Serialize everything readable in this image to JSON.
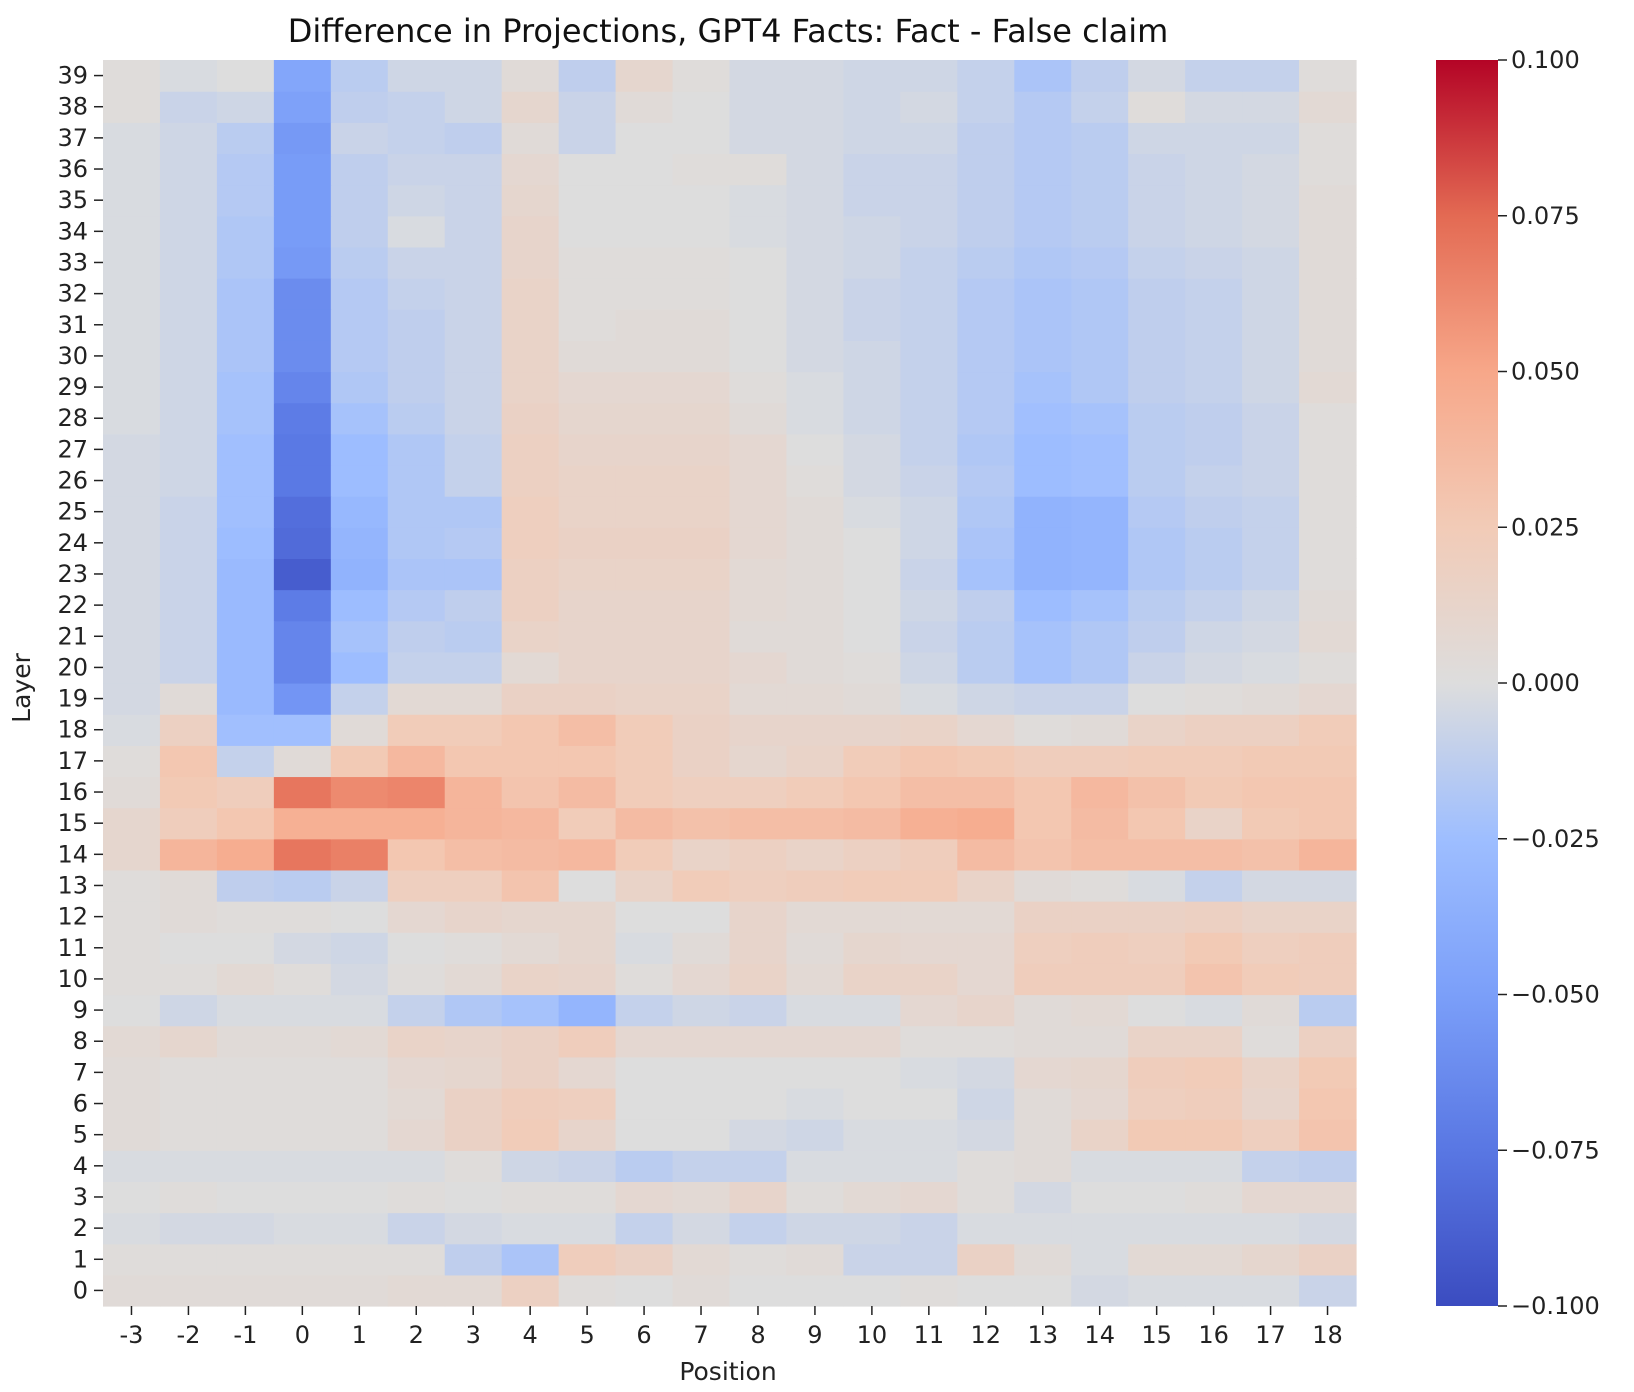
{
  "chart_data": {
    "type": "heatmap",
    "title": "Difference in Projections, GPT4 Facts: Fact - False claim",
    "xlabel": "Position",
    "ylabel": "Layer",
    "x": [
      -3,
      -2,
      -1,
      0,
      1,
      2,
      3,
      4,
      5,
      6,
      7,
      8,
      9,
      10,
      11,
      12,
      13,
      14,
      15,
      16,
      17,
      18
    ],
    "y": [
      0,
      1,
      2,
      3,
      4,
      5,
      6,
      7,
      8,
      9,
      10,
      11,
      12,
      13,
      14,
      15,
      16,
      17,
      18,
      19,
      20,
      21,
      22,
      23,
      24,
      25,
      26,
      27,
      28,
      29,
      30,
      31,
      32,
      33,
      34,
      35,
      36,
      37,
      38,
      39
    ],
    "colormap": "coolwarm",
    "vmin": -0.1,
    "vmax": 0.1,
    "colorbar_ticks": [
      0.1,
      0.075,
      0.05,
      0.025,
      0.0,
      -0.025,
      -0.05,
      -0.075,
      -0.1
    ],
    "colorbar_tick_labels": [
      "0.100",
      "0.075",
      "0.050",
      "0.025",
      "0.000",
      "−0.025",
      "−0.050",
      "−0.075",
      "−0.100"
    ],
    "values": [
      [
        0.004,
        0.004,
        0.004,
        0.004,
        0.004,
        0.006,
        0.006,
        0.018,
        0.002,
        0.0,
        0.004,
        0.0,
        0.0,
        0.0,
        0.002,
        0.0,
        0.0,
        -0.004,
        -0.002,
        -0.002,
        -0.002,
        -0.008
      ],
      [
        0.002,
        0.002,
        0.002,
        0.002,
        0.002,
        0.002,
        -0.012,
        -0.02,
        0.022,
        0.016,
        0.006,
        0.002,
        0.004,
        -0.008,
        -0.008,
        0.016,
        0.004,
        -0.002,
        0.006,
        0.006,
        0.01,
        0.016
      ],
      [
        -0.002,
        -0.004,
        -0.004,
        -0.002,
        -0.002,
        -0.008,
        -0.004,
        -0.002,
        -0.002,
        -0.01,
        -0.004,
        -0.01,
        -0.006,
        -0.006,
        -0.008,
        -0.002,
        -0.002,
        -0.002,
        -0.002,
        -0.002,
        -0.002,
        -0.004
      ],
      [
        0.0,
        0.002,
        0.0,
        0.0,
        0.0,
        0.002,
        0.0,
        0.002,
        0.002,
        0.008,
        0.006,
        0.012,
        0.002,
        0.006,
        0.008,
        0.002,
        -0.004,
        0.0,
        0.0,
        0.002,
        0.008,
        0.008
      ],
      [
        -0.002,
        -0.002,
        -0.002,
        -0.002,
        -0.002,
        -0.002,
        0.002,
        -0.006,
        -0.008,
        -0.014,
        -0.01,
        -0.01,
        -0.002,
        -0.002,
        -0.002,
        0.002,
        0.004,
        -0.002,
        -0.002,
        -0.002,
        -0.01,
        -0.012
      ],
      [
        0.004,
        0.002,
        0.002,
        0.002,
        0.002,
        0.008,
        0.016,
        0.024,
        0.012,
        0.0,
        0.0,
        -0.004,
        -0.006,
        -0.002,
        -0.002,
        -0.004,
        0.004,
        0.014,
        0.026,
        0.026,
        0.02,
        0.03
      ],
      [
        0.004,
        0.002,
        0.002,
        0.002,
        0.002,
        0.006,
        0.016,
        0.022,
        0.02,
        0.0,
        0.0,
        0.0,
        -0.002,
        0.0,
        0.0,
        -0.006,
        0.004,
        0.008,
        0.02,
        0.022,
        0.012,
        0.028
      ],
      [
        0.004,
        0.002,
        0.002,
        0.002,
        0.002,
        0.008,
        0.01,
        0.016,
        0.008,
        0.0,
        0.0,
        0.0,
        0.0,
        0.0,
        -0.002,
        -0.004,
        0.008,
        0.01,
        0.022,
        0.024,
        0.014,
        0.026
      ],
      [
        0.006,
        0.01,
        0.004,
        0.004,
        0.006,
        0.014,
        0.012,
        0.016,
        0.022,
        0.008,
        0.008,
        0.008,
        0.008,
        0.008,
        0.002,
        0.002,
        0.004,
        0.004,
        0.014,
        0.014,
        0.002,
        0.018
      ],
      [
        0.0,
        -0.006,
        -0.002,
        -0.002,
        -0.002,
        -0.01,
        -0.018,
        -0.022,
        -0.032,
        -0.01,
        -0.006,
        -0.008,
        -0.002,
        -0.002,
        0.008,
        0.012,
        0.004,
        0.006,
        0.0,
        -0.002,
        0.004,
        -0.014
      ],
      [
        0.002,
        0.002,
        0.006,
        0.002,
        -0.004,
        0.002,
        0.006,
        0.014,
        0.012,
        0.002,
        0.008,
        0.014,
        0.006,
        0.014,
        0.014,
        0.008,
        0.022,
        0.022,
        0.022,
        0.03,
        0.024,
        0.022
      ],
      [
        0.002,
        0.0,
        0.0,
        -0.004,
        -0.006,
        0.0,
        0.002,
        0.006,
        0.01,
        -0.002,
        0.004,
        0.012,
        0.004,
        0.01,
        0.008,
        0.008,
        0.02,
        0.022,
        0.02,
        0.026,
        0.02,
        0.022
      ],
      [
        0.002,
        0.004,
        0.002,
        0.002,
        0.0,
        0.008,
        0.012,
        0.01,
        0.01,
        0.0,
        0.0,
        0.012,
        0.006,
        0.006,
        0.006,
        0.006,
        0.016,
        0.016,
        0.016,
        0.018,
        0.014,
        0.014
      ],
      [
        0.002,
        0.004,
        -0.012,
        -0.014,
        -0.008,
        0.02,
        0.02,
        0.03,
        0.0,
        0.014,
        0.024,
        0.02,
        0.022,
        0.024,
        0.024,
        0.014,
        0.004,
        0.002,
        -0.002,
        -0.01,
        -0.004,
        -0.004
      ],
      [
        0.01,
        0.04,
        0.046,
        0.07,
        0.066,
        0.028,
        0.034,
        0.036,
        0.038,
        0.024,
        0.014,
        0.018,
        0.014,
        0.018,
        0.022,
        0.036,
        0.03,
        0.034,
        0.034,
        0.034,
        0.032,
        0.04
      ],
      [
        0.01,
        0.022,
        0.028,
        0.044,
        0.044,
        0.044,
        0.04,
        0.038,
        0.024,
        0.036,
        0.032,
        0.034,
        0.034,
        0.036,
        0.044,
        0.046,
        0.028,
        0.036,
        0.028,
        0.014,
        0.026,
        0.028
      ],
      [
        0.004,
        0.026,
        0.022,
        0.07,
        0.062,
        0.064,
        0.04,
        0.03,
        0.036,
        0.024,
        0.02,
        0.02,
        0.024,
        0.028,
        0.034,
        0.034,
        0.028,
        0.038,
        0.032,
        0.026,
        0.028,
        0.028
      ],
      [
        0.002,
        0.028,
        -0.01,
        0.004,
        0.026,
        0.038,
        0.028,
        0.028,
        0.028,
        0.024,
        0.016,
        0.01,
        0.014,
        0.024,
        0.028,
        0.026,
        0.022,
        0.022,
        0.024,
        0.024,
        0.026,
        0.026
      ],
      [
        -0.002,
        0.018,
        -0.024,
        -0.024,
        0.004,
        0.024,
        0.024,
        0.028,
        0.034,
        0.024,
        0.016,
        0.012,
        0.012,
        0.012,
        0.014,
        0.008,
        0.002,
        0.004,
        0.014,
        0.018,
        0.018,
        0.024
      ],
      [
        -0.004,
        0.004,
        -0.028,
        -0.056,
        -0.01,
        0.006,
        0.006,
        0.016,
        0.016,
        0.014,
        0.014,
        0.006,
        0.006,
        0.004,
        -0.002,
        -0.006,
        -0.008,
        -0.008,
        0.0,
        0.002,
        0.004,
        0.008
      ],
      [
        -0.004,
        -0.008,
        -0.028,
        -0.066,
        -0.026,
        -0.01,
        -0.01,
        0.006,
        0.012,
        0.012,
        0.012,
        0.008,
        0.004,
        0.002,
        -0.006,
        -0.014,
        -0.022,
        -0.018,
        -0.008,
        -0.004,
        -0.002,
        0.002
      ],
      [
        -0.004,
        -0.008,
        -0.028,
        -0.066,
        -0.022,
        -0.012,
        -0.014,
        0.014,
        0.012,
        0.012,
        0.012,
        0.004,
        0.004,
        0.0,
        -0.008,
        -0.014,
        -0.022,
        -0.018,
        -0.012,
        -0.006,
        -0.004,
        0.006
      ],
      [
        -0.004,
        -0.008,
        -0.028,
        -0.072,
        -0.026,
        -0.016,
        -0.012,
        0.018,
        0.012,
        0.012,
        0.012,
        0.006,
        0.004,
        0.0,
        -0.006,
        -0.012,
        -0.026,
        -0.022,
        -0.014,
        -0.01,
        -0.006,
        0.004
      ],
      [
        -0.004,
        -0.008,
        -0.028,
        -0.09,
        -0.034,
        -0.02,
        -0.02,
        0.018,
        0.014,
        0.014,
        0.014,
        0.006,
        0.004,
        0.0,
        -0.008,
        -0.022,
        -0.034,
        -0.032,
        -0.018,
        -0.014,
        -0.01,
        0.002
      ],
      [
        -0.004,
        -0.008,
        -0.026,
        -0.082,
        -0.032,
        -0.018,
        -0.016,
        0.02,
        0.016,
        0.016,
        0.016,
        0.008,
        0.004,
        0.0,
        -0.006,
        -0.02,
        -0.034,
        -0.032,
        -0.018,
        -0.014,
        -0.01,
        0.002
      ],
      [
        -0.004,
        -0.008,
        -0.024,
        -0.08,
        -0.03,
        -0.018,
        -0.018,
        0.02,
        0.014,
        0.014,
        0.014,
        0.008,
        0.004,
        -0.002,
        -0.006,
        -0.018,
        -0.034,
        -0.032,
        -0.016,
        -0.012,
        -0.01,
        0.002
      ],
      [
        -0.004,
        -0.006,
        -0.024,
        -0.074,
        -0.026,
        -0.018,
        -0.01,
        0.018,
        0.014,
        0.014,
        0.014,
        0.008,
        0.002,
        -0.004,
        -0.008,
        -0.016,
        -0.026,
        -0.024,
        -0.014,
        -0.01,
        -0.008,
        0.002
      ],
      [
        -0.004,
        -0.006,
        -0.024,
        -0.074,
        -0.026,
        -0.018,
        -0.01,
        0.018,
        0.012,
        0.012,
        0.012,
        0.008,
        0.0,
        -0.004,
        -0.01,
        -0.018,
        -0.026,
        -0.024,
        -0.014,
        -0.012,
        -0.008,
        0.002
      ],
      [
        -0.002,
        -0.006,
        -0.022,
        -0.072,
        -0.022,
        -0.014,
        -0.008,
        0.016,
        0.01,
        0.01,
        0.01,
        0.004,
        -0.002,
        -0.006,
        -0.01,
        -0.016,
        -0.024,
        -0.022,
        -0.014,
        -0.012,
        -0.008,
        0.002
      ],
      [
        -0.002,
        -0.006,
        -0.022,
        -0.066,
        -0.018,
        -0.012,
        -0.008,
        0.014,
        0.008,
        0.008,
        0.008,
        0.002,
        -0.002,
        -0.006,
        -0.01,
        -0.016,
        -0.022,
        -0.018,
        -0.012,
        -0.01,
        -0.006,
        0.006
      ],
      [
        -0.002,
        -0.006,
        -0.02,
        -0.062,
        -0.016,
        -0.012,
        -0.008,
        0.014,
        0.004,
        0.004,
        0.004,
        0.0,
        -0.004,
        -0.006,
        -0.01,
        -0.016,
        -0.02,
        -0.018,
        -0.012,
        -0.01,
        -0.006,
        0.004
      ],
      [
        -0.002,
        -0.006,
        -0.02,
        -0.062,
        -0.016,
        -0.012,
        -0.008,
        0.014,
        0.002,
        0.004,
        0.004,
        0.0,
        -0.004,
        -0.008,
        -0.01,
        -0.016,
        -0.02,
        -0.018,
        -0.012,
        -0.01,
        -0.006,
        0.004
      ],
      [
        -0.002,
        -0.006,
        -0.02,
        -0.062,
        -0.016,
        -0.01,
        -0.008,
        0.014,
        0.002,
        0.002,
        0.002,
        0.0,
        -0.004,
        -0.008,
        -0.01,
        -0.016,
        -0.02,
        -0.018,
        -0.012,
        -0.01,
        -0.006,
        0.004
      ],
      [
        -0.002,
        -0.006,
        -0.018,
        -0.054,
        -0.014,
        -0.008,
        -0.008,
        0.012,
        0.002,
        0.002,
        0.002,
        0.0,
        -0.004,
        -0.006,
        -0.01,
        -0.014,
        -0.018,
        -0.016,
        -0.01,
        -0.008,
        -0.006,
        0.004
      ],
      [
        -0.002,
        -0.006,
        -0.018,
        -0.052,
        -0.012,
        -0.002,
        -0.008,
        0.012,
        0.0,
        0.0,
        0.0,
        -0.002,
        -0.004,
        -0.006,
        -0.008,
        -0.012,
        -0.016,
        -0.014,
        -0.008,
        -0.006,
        -0.004,
        0.004
      ],
      [
        -0.002,
        -0.006,
        -0.016,
        -0.052,
        -0.012,
        -0.006,
        -0.008,
        0.01,
        0.0,
        0.0,
        0.0,
        -0.002,
        -0.004,
        -0.008,
        -0.008,
        -0.012,
        -0.016,
        -0.014,
        -0.008,
        -0.006,
        -0.004,
        0.004
      ],
      [
        -0.002,
        -0.006,
        -0.016,
        -0.052,
        -0.012,
        -0.008,
        -0.008,
        0.008,
        0.0,
        0.0,
        0.002,
        0.002,
        -0.004,
        -0.008,
        -0.008,
        -0.012,
        -0.016,
        -0.014,
        -0.008,
        -0.006,
        -0.004,
        0.002
      ],
      [
        -0.002,
        -0.006,
        -0.014,
        -0.054,
        -0.008,
        -0.01,
        -0.012,
        0.004,
        -0.008,
        0.0,
        0.0,
        -0.004,
        -0.004,
        -0.006,
        -0.006,
        -0.012,
        -0.016,
        -0.014,
        -0.006,
        -0.006,
        -0.006,
        0.002
      ],
      [
        0.002,
        -0.008,
        -0.006,
        -0.048,
        -0.012,
        -0.01,
        -0.006,
        0.01,
        -0.008,
        0.004,
        0.0,
        -0.004,
        -0.004,
        -0.006,
        -0.004,
        -0.01,
        -0.016,
        -0.01,
        0.002,
        -0.004,
        -0.004,
        0.006
      ],
      [
        0.002,
        -0.002,
        0.0,
        -0.044,
        -0.014,
        -0.006,
        -0.006,
        0.004,
        -0.012,
        0.01,
        0.002,
        -0.004,
        -0.004,
        -0.006,
        -0.006,
        -0.01,
        -0.02,
        -0.012,
        -0.004,
        -0.01,
        -0.01,
        0.002
      ]
    ]
  }
}
